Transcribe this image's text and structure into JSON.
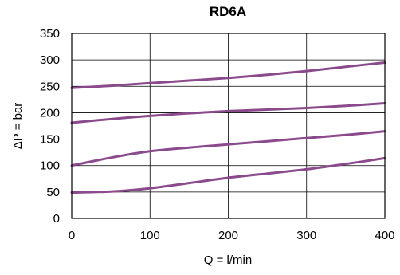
{
  "chart_data": {
    "type": "line",
    "title": "RD6A",
    "xlabel": "Q = l/min",
    "ylabel": "ΔP = bar",
    "xlim": [
      0,
      400
    ],
    "ylim": [
      0,
      350
    ],
    "xticks": [
      0,
      100,
      200,
      300,
      400
    ],
    "yticks": [
      0,
      50,
      100,
      150,
      200,
      250,
      300,
      350
    ],
    "grid": true,
    "line_color": "#8a4a8c",
    "series": [
      {
        "x": [
          0,
          50,
          100,
          150,
          200,
          250,
          300,
          350,
          400
        ],
        "values": [
          247,
          251,
          256,
          261,
          266,
          272,
          279,
          287,
          295
        ]
      },
      {
        "x": [
          0,
          50,
          100,
          150,
          200,
          250,
          300,
          350,
          400
        ],
        "values": [
          181,
          188,
          194,
          199,
          203,
          206,
          209,
          213,
          218
        ]
      },
      {
        "x": [
          0,
          50,
          100,
          150,
          200,
          250,
          300,
          350,
          400
        ],
        "values": [
          100,
          115,
          127,
          134,
          140,
          146,
          152,
          158,
          165
        ]
      },
      {
        "x": [
          0,
          50,
          100,
          150,
          200,
          250,
          300,
          350,
          400
        ],
        "values": [
          49,
          51,
          57,
          67,
          77,
          85,
          93,
          103,
          114
        ]
      }
    ]
  }
}
